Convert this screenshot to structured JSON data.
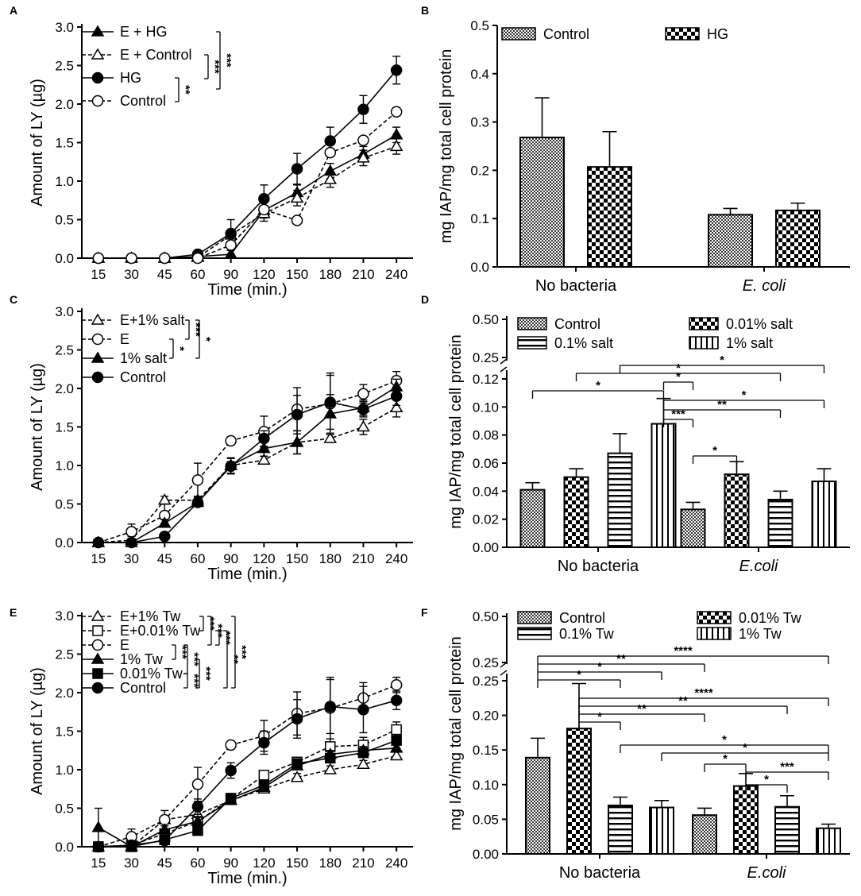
{
  "colors": {
    "ink": "#000000",
    "bg": "#ffffff"
  },
  "chart_data": [
    {
      "panel": "A",
      "type": "line",
      "xlabel": "Time (min.)",
      "ylabel": "Amount of LY (µg)",
      "categories": [
        "15",
        "30",
        "45",
        "60",
        "90",
        "120",
        "150",
        "180",
        "210",
        "240"
      ],
      "yticks": [
        "0.0",
        "0.5",
        "1.0",
        "1.5",
        "2.0",
        "2.5",
        "3.0"
      ],
      "ylim": [
        0,
        3
      ],
      "series": [
        {
          "name": "E + HG",
          "marker": "tri-filled",
          "dash": false,
          "values": [
            0,
            0,
            0,
            0.02,
            0.05,
            0.62,
            0.85,
            1.13,
            1.35,
            1.6
          ],
          "errors": [
            0,
            0,
            0,
            0.03,
            0.05,
            0.1,
            0.1,
            0.1,
            0.1,
            0.1
          ]
        },
        {
          "name": "E + Control",
          "marker": "tri-open",
          "dash": true,
          "values": [
            0,
            0,
            0,
            0.01,
            0.3,
            0.58,
            0.78,
            1.02,
            1.3,
            1.45
          ],
          "errors": [
            0,
            0,
            0,
            0.03,
            0.05,
            0.1,
            0.1,
            0.1,
            0.1,
            0.1
          ]
        },
        {
          "name": "HG",
          "marker": "circle-filled",
          "dash": false,
          "values": [
            0,
            0,
            0,
            0.05,
            0.32,
            0.77,
            1.16,
            1.52,
            1.93,
            2.44
          ],
          "errors": [
            0,
            0,
            0,
            0.03,
            0.18,
            0.18,
            0.2,
            0.18,
            0.18,
            0.18
          ]
        },
        {
          "name": "Control",
          "marker": "circle-open",
          "dash": true,
          "values": [
            0,
            0,
            0,
            0,
            0.17,
            0.63,
            0.49,
            1.37,
            1.53,
            1.9
          ],
          "errors": [
            0,
            0,
            0,
            0.02,
            0.05,
            0.05,
            0.03,
            0.05,
            0.05,
            0.05
          ]
        }
      ],
      "brackets": [
        {
          "stars": "**"
        },
        {
          "stars": "***"
        },
        {
          "stars": "***"
        }
      ]
    },
    {
      "panel": "B",
      "type": "bar",
      "ylabel": "mg IAP/mg total cell protein",
      "groups": [
        "No bacteria",
        "E. coli"
      ],
      "yticks": [
        "0.0",
        "0.1",
        "0.2",
        "0.3",
        "0.4",
        "0.5"
      ],
      "ylim": [
        0,
        0.5
      ],
      "series": [
        {
          "name": "Control",
          "pattern": "fine",
          "values": [
            0.268,
            0.108
          ],
          "errors": [
            0.082,
            0.013
          ]
        },
        {
          "name": "HG",
          "pattern": "checker",
          "values": [
            0.207,
            0.117
          ],
          "errors": [
            0.073,
            0.015
          ]
        }
      ]
    },
    {
      "panel": "C",
      "type": "line",
      "xlabel": "Time (min.)",
      "ylabel": "Amount of LY (µg)",
      "categories": [
        "15",
        "30",
        "45",
        "60",
        "90",
        "120",
        "150",
        "180",
        "210",
        "240"
      ],
      "yticks": [
        "0.0",
        "0.5",
        "1.0",
        "1.5",
        "2.0",
        "2.5",
        "3.0"
      ],
      "ylim": [
        0,
        3
      ],
      "series": [
        {
          "name": "E+1% salt",
          "marker": "tri-open",
          "dash": true,
          "values": [
            0,
            0.03,
            0.55,
            0.55,
            1.0,
            1.07,
            1.3,
            1.35,
            1.5,
            1.75
          ],
          "errors": [
            0,
            0.05,
            0.05,
            0.05,
            0.05,
            0.05,
            0.15,
            0.05,
            0.1,
            0.12
          ]
        },
        {
          "name": "E",
          "marker": "circle-open",
          "dash": true,
          "values": [
            0,
            0.14,
            0.35,
            0.81,
            1.32,
            1.44,
            1.73,
            1.8,
            1.93,
            2.1
          ],
          "errors": [
            0,
            0.1,
            0.15,
            0.22,
            0.05,
            0.2,
            0.28,
            0.4,
            0.12,
            0.12
          ]
        },
        {
          "name": "1% salt",
          "marker": "tri-filled",
          "dash": false,
          "values": [
            0,
            0,
            0.25,
            0.52,
            1.0,
            1.22,
            1.3,
            1.67,
            1.75,
            2.02
          ],
          "errors": [
            0,
            0.05,
            0.05,
            0.05,
            0.1,
            0.1,
            0.15,
            0.25,
            0.1,
            0.1
          ]
        },
        {
          "name": "Control",
          "marker": "circle-filled",
          "dash": false,
          "values": [
            0,
            0,
            0.08,
            0.52,
            0.99,
            1.35,
            1.66,
            1.82,
            1.73,
            1.9
          ],
          "errors": [
            0,
            0.03,
            0.03,
            0.05,
            0.1,
            0.1,
            0.25,
            0.35,
            0.1,
            0.12
          ]
        }
      ],
      "brackets": [
        {
          "stars": "*"
        },
        {
          "stars": "***"
        },
        {
          "stars": "*"
        }
      ]
    },
    {
      "panel": "D",
      "type": "bar",
      "ylabel": "mg IAP/mg total cell protein",
      "groups": [
        "No bacteria",
        "E.coli"
      ],
      "yticks": [
        "0.00",
        "0.02",
        "0.04",
        "0.06",
        "0.08",
        "0.10",
        "0.12"
      ],
      "ylim": [
        0,
        0.12
      ],
      "yticks_upper": [
        "0.25",
        "0.50"
      ],
      "series": [
        {
          "name": "Control",
          "pattern": "fine",
          "values": [
            0.041,
            0.027
          ],
          "errors": [
            0.005,
            0.005
          ]
        },
        {
          "name": "0.01% salt",
          "pattern": "checker",
          "values": [
            0.05,
            0.052
          ],
          "errors": [
            0.006,
            0.009
          ]
        },
        {
          "name": "0.1% salt",
          "pattern": "hlines",
          "values": [
            0.067,
            0.034
          ],
          "errors": [
            0.014,
            0.006
          ]
        },
        {
          "name": "1% salt",
          "pattern": "vlines",
          "values": [
            0.088,
            0.047
          ],
          "errors": [
            0.018,
            0.009
          ]
        }
      ],
      "brackets": [
        {
          "stars": "*"
        },
        {
          "stars": "*"
        },
        {
          "stars": "*"
        },
        {
          "stars": "*"
        },
        {
          "stars": "***"
        },
        {
          "stars": "**"
        },
        {
          "stars": "*"
        },
        {
          "stars": "*"
        }
      ]
    },
    {
      "panel": "E",
      "type": "line",
      "xlabel": "Time (min.)",
      "ylabel": "Amount of LY (µg)",
      "categories": [
        "15",
        "30",
        "45",
        "60",
        "90",
        "120",
        "150",
        "180",
        "210",
        "240"
      ],
      "yticks": [
        "0.0",
        "0.5",
        "1.0",
        "1.5",
        "2.0",
        "2.5",
        "3.0"
      ],
      "ylim": [
        0,
        3
      ],
      "series": [
        {
          "name": "E+1% Tw",
          "marker": "tri-open",
          "dash": true,
          "values": [
            0,
            0,
            0.35,
            0.42,
            0.6,
            0.75,
            0.9,
            1.0,
            1.07,
            1.18
          ],
          "errors": [
            0,
            0.03,
            0.05,
            0.05,
            0.05,
            0.05,
            0.05,
            0.05,
            0.05,
            0.05
          ]
        },
        {
          "name": "E+0.01% Tw",
          "marker": "square-open",
          "dash": true,
          "values": [
            0,
            0.02,
            0.17,
            0.33,
            0.62,
            0.93,
            1.1,
            1.3,
            1.32,
            1.52
          ],
          "errors": [
            0,
            0.03,
            0.05,
            0.05,
            0.05,
            0.05,
            0.05,
            0.1,
            0.1,
            0.1
          ]
        },
        {
          "name": "E",
          "marker": "circle-open",
          "dash": true,
          "values": [
            0,
            0.13,
            0.35,
            0.81,
            1.32,
            1.44,
            1.73,
            1.8,
            1.93,
            2.1
          ],
          "errors": [
            0,
            0.1,
            0.12,
            0.22,
            0.05,
            0.2,
            0.28,
            0.4,
            0.2,
            0.1
          ]
        },
        {
          "name": "1% Tw",
          "marker": "tri-filled",
          "dash": false,
          "values": [
            0.25,
            0,
            0.22,
            0.33,
            0.6,
            0.77,
            1.05,
            1.2,
            1.25,
            1.28
          ],
          "errors": [
            0.25,
            0.03,
            0.05,
            0.05,
            0.05,
            0.05,
            0.05,
            0.05,
            0.05,
            0.05
          ]
        },
        {
          "name": "0.01% Tw",
          "marker": "square-filled",
          "dash": false,
          "values": [
            0,
            0,
            0.09,
            0.21,
            0.63,
            0.8,
            1.08,
            1.15,
            1.22,
            1.38
          ],
          "errors": [
            0,
            0.03,
            0.05,
            0.05,
            0.05,
            0.05,
            0.05,
            0.05,
            0.05,
            0.05
          ]
        },
        {
          "name": "Control",
          "marker": "circle-filled",
          "dash": false,
          "values": [
            0,
            0.02,
            0.08,
            0.52,
            0.99,
            1.35,
            1.66,
            1.82,
            1.78,
            1.9
          ],
          "errors": [
            0,
            0.03,
            0.05,
            0.1,
            0.1,
            0.15,
            0.25,
            0.35,
            0.3,
            0.12
          ]
        }
      ],
      "brackets": [
        {
          "stars": "***"
        },
        {
          "stars": "***"
        },
        {
          "stars": "***"
        },
        {
          "stars": "***"
        },
        {
          "stars": "***"
        },
        {
          "stars": "***"
        },
        {
          "stars": "***"
        },
        {
          "stars": "**"
        },
        {
          "stars": "***"
        }
      ]
    },
    {
      "panel": "F",
      "type": "bar",
      "ylabel": "mg IAP/mg total cell protein",
      "groups": [
        "No bacteria",
        "E.coli"
      ],
      "yticks": [
        "0.00",
        "0.05",
        "0.10",
        "0.15",
        "0.20",
        "0.25"
      ],
      "ylim": [
        0,
        0.25
      ],
      "yticks_upper": [
        "0.25",
        "0.50"
      ],
      "series": [
        {
          "name": "Control",
          "pattern": "fine",
          "values": [
            0.139,
            0.056
          ],
          "errors": [
            0.028,
            0.01
          ]
        },
        {
          "name": "0.01% Tw",
          "pattern": "checker",
          "values": [
            0.181,
            0.098
          ],
          "errors": [
            0.065,
            0.018
          ]
        },
        {
          "name": "0.1% Tw",
          "pattern": "hlines",
          "values": [
            0.07,
            0.068
          ],
          "errors": [
            0.012,
            0.016
          ]
        },
        {
          "name": "1% Tw",
          "pattern": "vlines",
          "values": [
            0.067,
            0.037
          ],
          "errors": [
            0.01,
            0.006
          ]
        }
      ],
      "brackets": [
        {
          "stars": "*"
        },
        {
          "stars": "*"
        },
        {
          "stars": "**"
        },
        {
          "stars": "****"
        },
        {
          "stars": "*"
        },
        {
          "stars": "**"
        },
        {
          "stars": "**"
        },
        {
          "stars": "****"
        },
        {
          "stars": "*"
        },
        {
          "stars": "*"
        },
        {
          "stars": "*"
        },
        {
          "stars": "***"
        },
        {
          "stars": "*"
        }
      ]
    }
  ]
}
